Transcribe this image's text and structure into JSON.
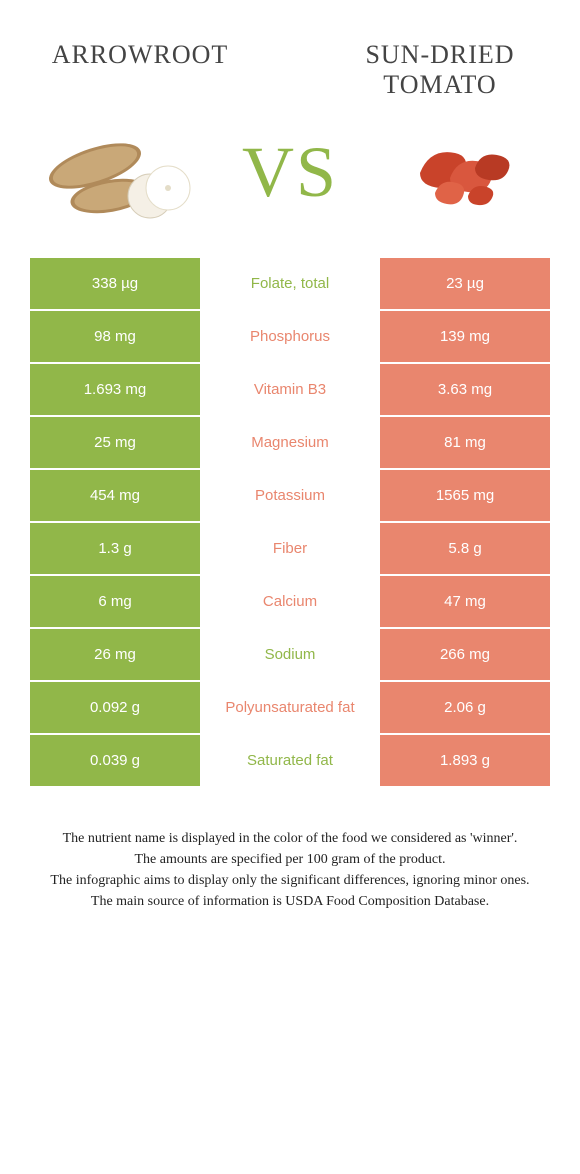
{
  "colors": {
    "green": "#91b749",
    "orange": "#e9866e",
    "text": "#444444",
    "footer_text": "#222222"
  },
  "header": {
    "left_title": "Arrowroot",
    "right_title_line1": "Sun-dried",
    "right_title_line2": "tomato",
    "vs_label": "VS"
  },
  "rows": [
    {
      "left": "338 µg",
      "mid": "Folate, total",
      "right": "23 µg",
      "winner": "green"
    },
    {
      "left": "98 mg",
      "mid": "Phosphorus",
      "right": "139 mg",
      "winner": "orange"
    },
    {
      "left": "1.693 mg",
      "mid": "Vitamin B3",
      "right": "3.63 mg",
      "winner": "orange"
    },
    {
      "left": "25 mg",
      "mid": "Magnesium",
      "right": "81 mg",
      "winner": "orange"
    },
    {
      "left": "454 mg",
      "mid": "Potassium",
      "right": "1565 mg",
      "winner": "orange"
    },
    {
      "left": "1.3 g",
      "mid": "Fiber",
      "right": "5.8 g",
      "winner": "orange"
    },
    {
      "left": "6 mg",
      "mid": "Calcium",
      "right": "47 mg",
      "winner": "orange"
    },
    {
      "left": "26 mg",
      "mid": "Sodium",
      "right": "266 mg",
      "winner": "green"
    },
    {
      "left": "0.092 g",
      "mid": "Polyunsaturated fat",
      "right": "2.06 g",
      "winner": "orange"
    },
    {
      "left": "0.039 g",
      "mid": "Saturated fat",
      "right": "1.893 g",
      "winner": "green"
    }
  ],
  "footer": {
    "line1": "The nutrient name is displayed in the color of the food we considered as 'winner'.",
    "line2": "The amounts are specified per 100 gram of the product.",
    "line3": "The infographic aims to display only the significant differences, ignoring minor ones.",
    "line4": "The main source of information is USDA Food Composition Database."
  }
}
